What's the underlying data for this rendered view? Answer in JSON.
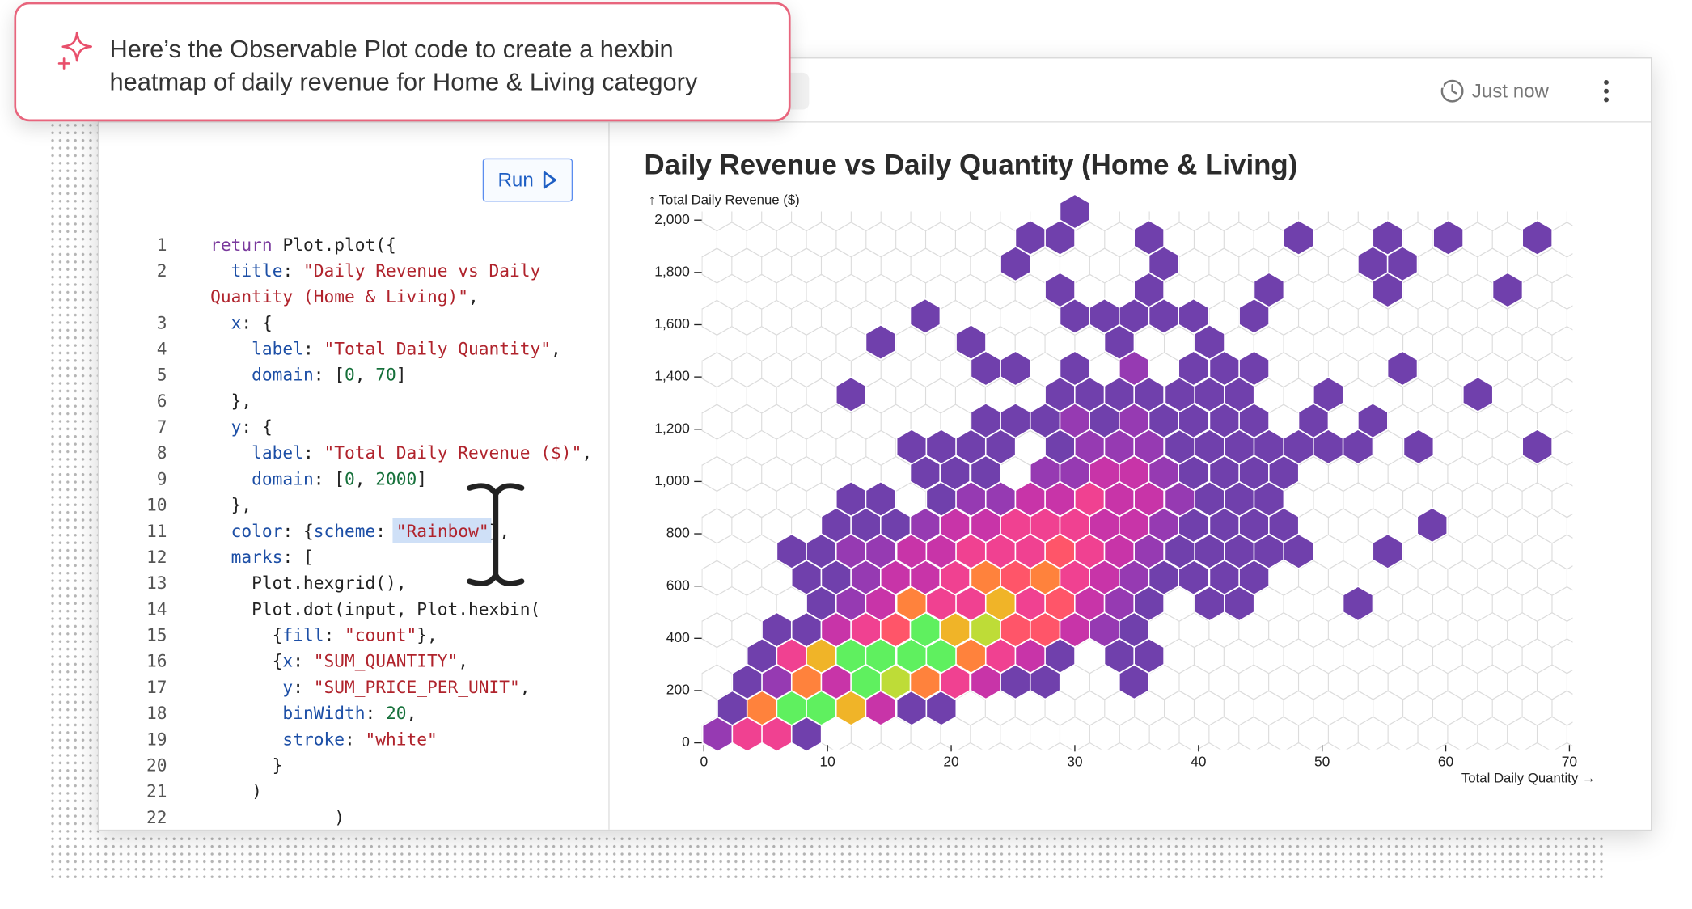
{
  "popup": {
    "lines": [
      "Here’s the Observable Plot code to create a hexbin",
      "heatmap of daily revenue for Home & Living category"
    ]
  },
  "header": {
    "timestamp": "Just now"
  },
  "editor": {
    "run_button": "Run",
    "rows": [
      {
        "number": 1,
        "text": "return Plot.plot({"
      },
      {
        "number": 2,
        "text": "  title: \"Daily Revenue vs Daily"
      },
      {
        "text": "Quantity (Home & Living)\","
      },
      {
        "number": 3,
        "text": "  x: {"
      },
      {
        "number": 4,
        "text": "    label: \"Total Daily Quantity\","
      },
      {
        "number": 5,
        "text": "    domain: [0, 70]"
      },
      {
        "number": 6,
        "text": "  },"
      },
      {
        "number": 7,
        "text": "  y: {"
      },
      {
        "number": 8,
        "text": "    label: \"Total Daily Revenue ($)\","
      },
      {
        "number": 9,
        "text": "    domain: [0, 2000]"
      },
      {
        "number": 10,
        "text": "  },"
      },
      {
        "number": 11,
        "text": "  color: {scheme: \"Rainbow\"},"
      },
      {
        "number": 12,
        "text": "  marks: ["
      },
      {
        "number": 13,
        "text": "    Plot.hexgrid(),"
      },
      {
        "number": 14,
        "text": "    Plot.dot(input, Plot.hexbin("
      },
      {
        "number": 15,
        "text": "      {fill: \"count\"},"
      },
      {
        "number": 16,
        "text": "      {x: \"SUM_QUANTITY\","
      },
      {
        "number": 17,
        "text": "       y: \"SUM_PRICE_PER_UNIT\","
      },
      {
        "number": 18,
        "text": "       binWidth: 20,"
      },
      {
        "number": 19,
        "text": "       stroke: \"white\""
      },
      {
        "number": 20,
        "text": "      }"
      },
      {
        "number": 21,
        "text": "    )"
      },
      {
        "number": 22,
        "text": "            )"
      }
    ]
  },
  "chart_data": {
    "type": "hexbin",
    "title": "Daily Revenue vs Daily Quantity (Home & Living)",
    "x_label": "Total Daily Quantity →",
    "y_label": "↑ Total Daily Revenue ($)",
    "xlim": [
      0,
      70
    ],
    "ylim": [
      0,
      2000
    ],
    "xticks": [
      0,
      10,
      20,
      30,
      40,
      50,
      60,
      70
    ],
    "yticks": [
      0,
      200,
      400,
      600,
      800,
      {
        "value": 1000,
        "label": "1,000"
      },
      {
        "value": 1200,
        "label": "1,200"
      },
      {
        "value": 1400,
        "label": "1,400"
      },
      {
        "value": 1600,
        "label": "1,600"
      },
      {
        "value": 1800,
        "label": "1,800"
      },
      {
        "value": 2000,
        "label": "2,000"
      }
    ],
    "color_scheme": [
      "#7040ac",
      "#963ab2",
      "#c834a8",
      "#f04191",
      "#ff5569",
      "#ff823c",
      "#f0b428",
      "#bedc37",
      "#5ff05f"
    ],
    "stroke": "#ffffff",
    "x": [
      1.1,
      3.5,
      5.9,
      8.3,
      2.3,
      4.7,
      7.1,
      9.5,
      11.9,
      14.3,
      16.8,
      19.2,
      3.5,
      5.9,
      8.3,
      10.7,
      13.1,
      15.5,
      17.9,
      20.3,
      22.8,
      25.2,
      27.6,
      34.8,
      4.7,
      7.1,
      9.5,
      11.9,
      14.3,
      16.8,
      19.2,
      21.6,
      24,
      26.4,
      28.8,
      33.6,
      36,
      5.9,
      8.3,
      10.7,
      13.1,
      15.5,
      17.9,
      20.3,
      22.8,
      25.2,
      27.6,
      30,
      32.4,
      34.8,
      9.5,
      11.9,
      14.3,
      16.8,
      19.2,
      21.6,
      24,
      26.4,
      28.8,
      31.2,
      33.6,
      36,
      40.9,
      43.3,
      52.9,
      8.3,
      10.7,
      13.1,
      15.5,
      17.9,
      20.3,
      22.8,
      25.2,
      27.6,
      30,
      32.4,
      34.8,
      37.2,
      39.6,
      42.1,
      44.5,
      7.1,
      9.5,
      11.9,
      14.3,
      16.8,
      19.2,
      21.6,
      24,
      26.4,
      28.8,
      31.2,
      33.6,
      36,
      38.5,
      40.9,
      43.3,
      45.7,
      48.1,
      55.3,
      10.7,
      13.1,
      15.5,
      17.9,
      20.3,
      22.8,
      25.2,
      27.6,
      30,
      32.4,
      34.8,
      37.2,
      39.6,
      42.1,
      44.5,
      46.9,
      58.9,
      11.9,
      14.3,
      19.2,
      21.6,
      24,
      26.4,
      28.8,
      31.2,
      33.6,
      36,
      38.5,
      40.9,
      43.3,
      45.7,
      17.9,
      20.3,
      22.8,
      27.6,
      30,
      32.4,
      34.8,
      37.2,
      39.6,
      42.1,
      44.5,
      46.9,
      16.8,
      19.2,
      21.6,
      24,
      28.8,
      31.2,
      33.6,
      36,
      38.5,
      40.9,
      43.3,
      45.7,
      48.1,
      50.5,
      52.9,
      57.8,
      67.4,
      22.8,
      25.2,
      27.6,
      30,
      32.4,
      34.8,
      37.2,
      39.6,
      42.1,
      44.5,
      49.3,
      54.1,
      11.9,
      28.8,
      31.2,
      33.6,
      36,
      38.5,
      40.9,
      43.3,
      50.5,
      62.6,
      22.8,
      25.2,
      30,
      34.8,
      39.6,
      42.1,
      44.5,
      56.5,
      14.3,
      21.6,
      33.6,
      40.9,
      17.9,
      30,
      32.4,
      34.8,
      37.2,
      39.6,
      44.5,
      28.8,
      36,
      45.7,
      55.3,
      65,
      25.2,
      37.2,
      54.1,
      56.5,
      26.4,
      28.8,
      36,
      48.1,
      55.3,
      60.2,
      67.4,
      30
    ],
    "y": [
      33,
      33,
      33,
      33,
      133,
      133,
      133,
      133,
      133,
      133,
      133,
      133,
      233,
      233,
      233,
      233,
      233,
      233,
      233,
      233,
      233,
      233,
      233,
      233,
      333,
      333,
      333,
      333,
      333,
      333,
      333,
      333,
      333,
      333,
      333,
      333,
      333,
      433,
      433,
      433,
      433,
      433,
      433,
      433,
      433,
      433,
      433,
      433,
      433,
      433,
      533,
      533,
      533,
      533,
      533,
      533,
      533,
      533,
      533,
      533,
      533,
      533,
      533,
      533,
      533,
      633,
      633,
      633,
      633,
      633,
      633,
      633,
      633,
      633,
      633,
      633,
      633,
      633,
      633,
      633,
      633,
      733,
      733,
      733,
      733,
      733,
      733,
      733,
      733,
      733,
      733,
      733,
      733,
      733,
      733,
      733,
      733,
      733,
      733,
      733,
      833,
      833,
      833,
      833,
      833,
      833,
      833,
      833,
      833,
      833,
      833,
      833,
      833,
      833,
      833,
      833,
      833,
      933,
      933,
      933,
      933,
      933,
      933,
      933,
      933,
      933,
      933,
      933,
      933,
      933,
      933,
      1033,
      1033,
      1033,
      1033,
      1033,
      1033,
      1033,
      1033,
      1033,
      1033,
      1033,
      1033,
      1133,
      1133,
      1133,
      1133,
      1133,
      1133,
      1133,
      1133,
      1133,
      1133,
      1133,
      1133,
      1133,
      1133,
      1133,
      1133,
      1133,
      1233,
      1233,
      1233,
      1233,
      1233,
      1233,
      1233,
      1233,
      1233,
      1233,
      1233,
      1233,
      1333,
      1333,
      1333,
      1333,
      1333,
      1333,
      1333,
      1333,
      1333,
      1333,
      1433,
      1433,
      1433,
      1433,
      1433,
      1433,
      1433,
      1433,
      1533,
      1533,
      1533,
      1533,
      1633,
      1633,
      1633,
      1633,
      1633,
      1633,
      1633,
      1733,
      1733,
      1733,
      1733,
      1733,
      1833,
      1833,
      1833,
      1833,
      1933,
      1933,
      1933,
      1933,
      1933,
      1933,
      1933,
      2033
    ],
    "values": [
      2,
      4,
      4,
      1,
      1,
      6,
      9,
      9,
      7,
      3,
      1,
      1,
      1,
      2,
      6,
      3,
      9,
      8,
      6,
      4,
      3,
      1,
      1,
      1,
      1,
      4,
      7,
      9,
      9,
      9,
      9,
      6,
      4,
      3,
      1,
      1,
      1,
      1,
      1,
      3,
      4,
      5,
      9,
      7,
      8,
      5,
      5,
      3,
      2,
      1,
      1,
      2,
      3,
      6,
      4,
      4,
      7,
      4,
      5,
      3,
      2,
      1,
      1,
      1,
      1,
      1,
      1,
      2,
      3,
      3,
      4,
      6,
      5,
      6,
      4,
      3,
      2,
      1,
      1,
      1,
      1,
      1,
      1,
      2,
      2,
      3,
      3,
      4,
      4,
      4,
      5,
      4,
      3,
      2,
      1,
      1,
      1,
      1,
      1,
      1,
      1,
      1,
      1,
      2,
      3,
      3,
      4,
      4,
      4,
      3,
      3,
      2,
      1,
      1,
      1,
      1,
      1,
      1,
      1,
      1,
      2,
      2,
      3,
      3,
      4,
      3,
      3,
      2,
      1,
      1,
      1,
      1,
      1,
      1,
      2,
      2,
      3,
      3,
      2,
      1,
      1,
      1,
      1,
      1,
      1,
      1,
      1,
      1,
      2,
      2,
      2,
      1,
      1,
      1,
      1,
      1,
      1,
      1,
      1,
      1,
      1,
      1,
      1,
      2,
      1,
      2,
      1,
      1,
      1,
      1,
      1,
      1,
      1,
      1,
      1,
      1,
      1,
      1,
      1,
      1,
      1,
      1,
      1,
      1,
      1,
      2,
      1,
      1,
      1,
      1,
      1,
      1,
      1,
      1,
      1,
      1,
      1,
      1,
      1,
      1,
      1,
      1,
      1,
      1,
      1,
      1,
      1,
      1,
      1,
      1,
      1,
      1,
      1,
      1,
      1,
      1,
      1,
      1
    ]
  }
}
